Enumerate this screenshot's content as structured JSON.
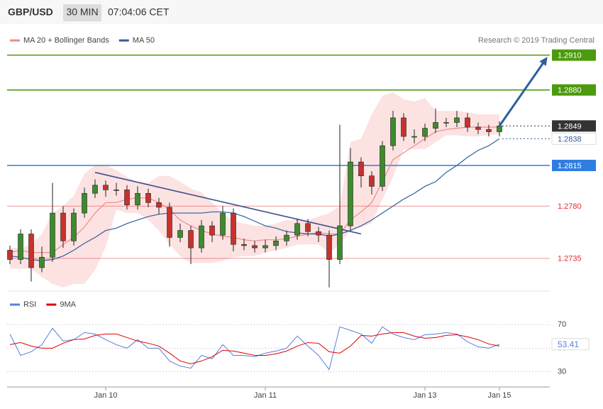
{
  "header": {
    "symbol": "GBP/USD",
    "interval": "30 MIN",
    "time": "07:04:06 CET"
  },
  "credit": "Research © 2019 Trading Central",
  "chart_data": [
    {
      "type": "candlestick",
      "categories": [
        null,
        null,
        null,
        null,
        null,
        null,
        null,
        null,
        null,
        "Jan 10",
        null,
        null,
        null,
        null,
        null,
        null,
        null,
        null,
        null,
        null,
        null,
        null,
        null,
        null,
        "Jan 11",
        null,
        null,
        null,
        null,
        null,
        null,
        null,
        null,
        null,
        null,
        null,
        null,
        null,
        null,
        "Jan 13",
        null,
        null,
        null,
        null,
        null,
        null,
        "Jan 15"
      ],
      "open": [
        1.2742,
        1.2734,
        1.2756,
        1.2727,
        1.2736,
        1.2774,
        1.275,
        1.2774,
        1.2791,
        1.2798,
        1.2794,
        1.2794,
        1.2781,
        1.2791,
        1.2783,
        1.2779,
        1.2753,
        1.2759,
        1.2744,
        1.2763,
        1.2755,
        1.2774,
        1.2747,
        1.2746,
        1.2744,
        1.2746,
        1.275,
        1.2755,
        1.2765,
        1.2758,
        1.2755,
        1.2734,
        1.2763,
        1.2818,
        1.2806,
        1.2797,
        1.2832,
        1.2856,
        1.284,
        1.284,
        1.2847,
        1.2852,
        1.2852,
        1.2856,
        1.2848,
        1.2846,
        1.2844
      ],
      "high": [
        1.2746,
        1.276,
        1.276,
        1.2745,
        1.28,
        1.278,
        1.2778,
        1.2796,
        1.2803,
        1.2802,
        1.28,
        1.2798,
        1.2797,
        1.2795,
        1.2787,
        1.2783,
        1.2765,
        1.2763,
        1.2768,
        1.2767,
        1.278,
        1.2778,
        1.2752,
        1.275,
        1.2751,
        1.2754,
        1.2759,
        1.2769,
        1.2769,
        1.2762,
        1.2759,
        1.285,
        1.283,
        1.2822,
        1.281,
        1.2836,
        1.2862,
        1.286,
        1.2846,
        1.2851,
        1.2864,
        1.2856,
        1.2862,
        1.286,
        1.2852,
        1.285,
        1.2853
      ],
      "low": [
        1.273,
        1.273,
        1.2715,
        1.2723,
        1.2732,
        1.2744,
        1.2746,
        1.277,
        1.2787,
        1.2788,
        1.2789,
        1.2777,
        1.2777,
        1.2779,
        1.2773,
        1.2745,
        1.2749,
        1.273,
        1.274,
        1.2749,
        1.2751,
        1.2741,
        1.2742,
        1.274,
        1.274,
        1.2742,
        1.2746,
        1.2751,
        1.2754,
        1.2749,
        1.271,
        1.273,
        1.2759,
        1.2796,
        1.279,
        1.2793,
        1.2828,
        1.2836,
        1.2834,
        1.2836,
        1.2843,
        1.2848,
        1.2848,
        1.2844,
        1.2842,
        1.284,
        1.284
      ],
      "close": [
        1.2734,
        1.2756,
        1.2727,
        1.2736,
        1.2774,
        1.275,
        1.2774,
        1.2791,
        1.2798,
        1.2794,
        1.2794,
        1.2781,
        1.2791,
        1.2783,
        1.2779,
        1.2753,
        1.2759,
        1.2744,
        1.2763,
        1.2755,
        1.2774,
        1.2747,
        1.2746,
        1.2744,
        1.2746,
        1.275,
        1.2755,
        1.2765,
        1.2758,
        1.2755,
        1.2734,
        1.2763,
        1.2818,
        1.2806,
        1.2797,
        1.2832,
        1.2856,
        1.284,
        1.284,
        1.2847,
        1.2852,
        1.2852,
        1.2856,
        1.2848,
        1.2846,
        1.2844,
        1.2849
      ],
      "up_color": "#3d8b2c",
      "down_color": "#c8322c",
      "series": [
        {
          "name": "MA 20 + Bollinger Bands",
          "color": "#f08a8a",
          "band_color": "#fde2e2",
          "values": [
            1.274,
            1.2742,
            1.274,
            1.274,
            1.274,
            1.2747,
            1.2753,
            1.2762,
            1.2774,
            1.2783,
            1.2783,
            1.2786,
            1.2787,
            1.2787,
            1.2783,
            1.2777,
            1.2768,
            1.2763,
            1.2759,
            1.2756,
            1.2754,
            1.2753,
            1.2751,
            1.275,
            1.2751,
            1.2751,
            1.2752,
            1.2754,
            1.2756,
            1.2757,
            1.2756,
            1.2756,
            1.2768,
            1.2775,
            1.2783,
            1.2801,
            1.282,
            1.2826,
            1.2832,
            1.2838,
            1.2844,
            1.2846,
            1.2847,
            1.2848,
            1.2848,
            1.2848,
            1.2848
          ],
          "upper": [
            1.2744,
            1.2744,
            1.2747,
            1.2756,
            1.2774,
            1.278,
            1.2789,
            1.2808,
            1.2815,
            1.2815,
            1.2811,
            1.2805,
            1.2801,
            1.28,
            1.2806,
            1.2806,
            1.2801,
            1.2795,
            1.2792,
            1.2783,
            1.2774,
            1.2767,
            1.2765,
            1.2763,
            1.2763,
            1.2765,
            1.2768,
            1.2768,
            1.2768,
            1.2771,
            1.2774,
            1.278,
            1.2835,
            1.2838,
            1.2859,
            1.2875,
            1.2878,
            1.2872,
            1.287,
            1.2873,
            1.2862,
            1.2862,
            1.2862,
            1.2861,
            1.2859,
            1.2859,
            1.2859
          ],
          "lower": [
            1.2726,
            1.2726,
            1.2726,
            1.2719,
            1.2713,
            1.271,
            1.2713,
            1.2713,
            1.2725,
            1.2745,
            1.2777,
            1.2774,
            1.2774,
            1.2768,
            1.2759,
            1.2747,
            1.2737,
            1.2731,
            1.2731,
            1.2731,
            1.2733,
            1.2736,
            1.2737,
            1.2737,
            1.274,
            1.2742,
            1.2744,
            1.2747,
            1.2747,
            1.2747,
            1.274,
            1.2747,
            1.2759,
            1.2762,
            1.2765,
            1.2786,
            1.2805,
            1.2829,
            1.2829,
            1.2829,
            1.2835,
            1.2841,
            1.2841,
            1.284,
            1.284,
            1.2841,
            1.2842
          ]
        },
        {
          "name": "MA 50",
          "color": "#2e5f9e",
          "values": [
            1.2737,
            1.2736,
            1.2734,
            1.2733,
            1.2734,
            1.2737,
            1.2742,
            1.2748,
            1.2753,
            1.2759,
            1.2761,
            1.2765,
            1.2768,
            1.2771,
            1.2773,
            1.2774,
            1.2774,
            1.2774,
            1.2774,
            1.2775,
            1.2775,
            1.2774,
            1.2771,
            1.2767,
            1.2763,
            1.2761,
            1.2758,
            1.2757,
            1.2756,
            1.2756,
            1.2754,
            1.2756,
            1.2759,
            1.2763,
            1.2768,
            1.2774,
            1.278,
            1.2786,
            1.2791,
            1.2797,
            1.2801,
            1.2809,
            1.2815,
            1.2822,
            1.2828,
            1.2832,
            1.2838
          ]
        }
      ],
      "levels": [
        {
          "value": 1.291,
          "label": "1.2910",
          "color": "#4c9a0e",
          "line": "solid",
          "box": "filled"
        },
        {
          "value": 1.288,
          "label": "1.2880",
          "color": "#4c9a0e",
          "line": "solid",
          "box": "filled"
        },
        {
          "value": 1.2849,
          "color": "#333333",
          "line": "dotted",
          "box": "filled"
        },
        {
          "value": 1.2838,
          "color": "#2e5f9e",
          "line": "dotted",
          "box": "outline"
        },
        {
          "value": 1.2815,
          "color": "#2f7de1",
          "line": "solid",
          "box": "filled"
        },
        {
          "value": 1.278,
          "label": "1.2780",
          "color": "#e03030",
          "line": "solid",
          "box": "text"
        },
        {
          "value": 1.2735,
          "color": "#e03030",
          "line": "solid",
          "box": "text"
        }
      ],
      "trendline": {
        "x": [
          8,
          33
        ],
        "y": [
          1.2809,
          1.2756
        ],
        "color": "#3a4f8c"
      },
      "projection": {
        "x": [
          46,
          50.4
        ],
        "y": [
          1.2849,
          1.2907
        ],
        "color": "#2e5f9e"
      },
      "ylim": [
        1.2708,
        1.2933
      ]
    },
    {
      "type": "line",
      "series": [
        {
          "name": "RSI",
          "color": "#5b7fdc",
          "values": [
            62.1,
            43.9,
            47.0,
            53.0,
            67.0,
            56.1,
            57.3,
            63.3,
            62.1,
            57.3,
            53.0,
            50.0,
            57.3,
            50.0,
            50.0,
            39.1,
            34.8,
            33.0,
            43.9,
            40.9,
            53.0,
            43.9,
            43.9,
            42.7,
            45.8,
            47.6,
            50.0,
            60.3,
            51.8,
            43.9,
            31.8,
            68.2,
            65.2,
            62.1,
            54.2,
            68.2,
            62.1,
            59.1,
            57.3,
            61.5,
            62.1,
            63.3,
            62.1,
            55.5,
            51.2,
            50.0,
            53.41
          ]
        },
        {
          "name": "9MA",
          "color": "#e00000",
          "values": [
            53.0,
            54.8,
            51.8,
            50.0,
            50.0,
            54.2,
            57.3,
            57.9,
            60.9,
            62.1,
            62.1,
            59.1,
            56.1,
            54.2,
            51.8,
            45.8,
            39.1,
            36.7,
            39.1,
            42.7,
            48.2,
            47.6,
            45.8,
            43.9,
            43.9,
            45.2,
            47.6,
            51.8,
            54.8,
            54.2,
            47.0,
            45.8,
            51.8,
            60.9,
            60.3,
            62.1,
            63.3,
            63.3,
            60.3,
            58.5,
            59.1,
            60.9,
            61.5,
            59.7,
            57.3,
            53.6,
            51.8
          ]
        }
      ],
      "ylim": [
        20,
        98
      ],
      "yticks": [
        70,
        50,
        30
      ],
      "grid": true
    }
  ]
}
